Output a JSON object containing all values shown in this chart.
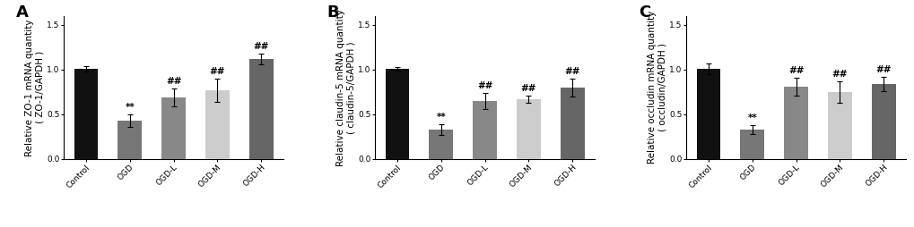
{
  "panels": [
    {
      "label": "A",
      "ylabel": "Relative ZO-1 mRNA quantity\n( ZO-1/GAPDH )",
      "categories": [
        "Control",
        "OGD",
        "OGD-L",
        "OGD-M",
        "OGD-H"
      ],
      "values": [
        1.01,
        0.43,
        0.69,
        0.77,
        1.12
      ],
      "errors": [
        0.03,
        0.07,
        0.1,
        0.13,
        0.06
      ],
      "bar_colors": [
        "#111111",
        "#777777",
        "#888888",
        "#cccccc",
        "#666666"
      ],
      "annotations": [
        "",
        "**",
        "##",
        "##",
        "##"
      ]
    },
    {
      "label": "B",
      "ylabel": "Relative claudin-5 mRNA quantity\n( claudin-5/GAPDH )",
      "categories": [
        "Control",
        "OGD",
        "OGD-L",
        "OGD-M",
        "OGD-H"
      ],
      "values": [
        1.01,
        0.33,
        0.65,
        0.67,
        0.8
      ],
      "errors": [
        0.02,
        0.06,
        0.09,
        0.04,
        0.1
      ],
      "bar_colors": [
        "#111111",
        "#777777",
        "#888888",
        "#cccccc",
        "#666666"
      ],
      "annotations": [
        "",
        "**",
        "##",
        "##",
        "##"
      ]
    },
    {
      "label": "C",
      "ylabel": "Relative occludin mRNA quantity\n( occludin/GAPDH )",
      "categories": [
        "Control",
        "OGD",
        "OGD-L",
        "OGD-M",
        "OGD-H"
      ],
      "values": [
        1.01,
        0.33,
        0.81,
        0.75,
        0.84
      ],
      "errors": [
        0.06,
        0.05,
        0.1,
        0.12,
        0.08
      ],
      "bar_colors": [
        "#111111",
        "#777777",
        "#888888",
        "#cccccc",
        "#666666"
      ],
      "annotations": [
        "",
        "**",
        "##",
        "##",
        "##"
      ]
    }
  ],
  "ylim": [
    0,
    1.6
  ],
  "yticks": [
    0.0,
    0.5,
    1.0,
    1.5
  ],
  "background_color": "#ffffff",
  "bar_width": 0.55,
  "label_fontsize": 7.5,
  "tick_fontsize": 6.5,
  "panel_label_fontsize": 13,
  "ann_fontsize": 7.5
}
